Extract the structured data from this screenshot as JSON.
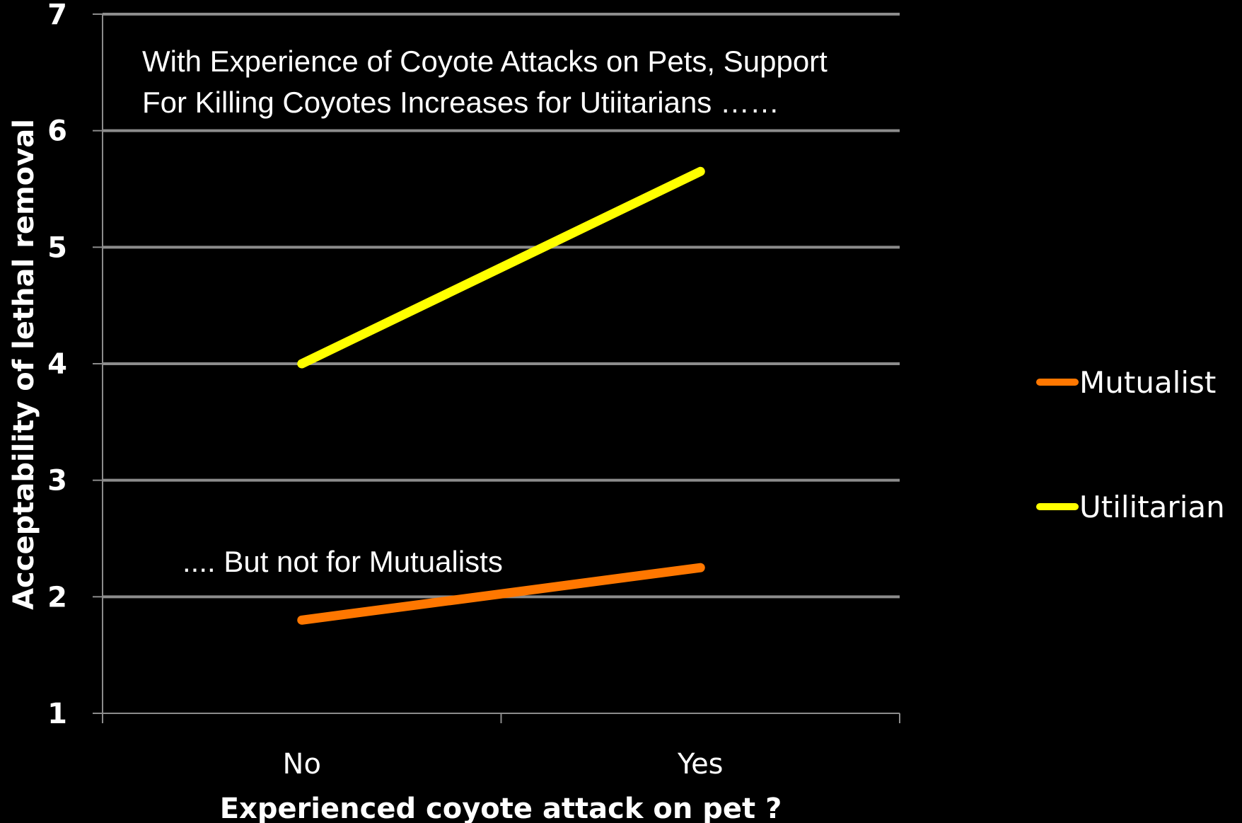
{
  "chart_data": {
    "type": "line",
    "categories": [
      "No",
      "Yes"
    ],
    "series": [
      {
        "name": "Mutualist",
        "values": [
          1.8,
          2.25
        ],
        "color": "#ff7700"
      },
      {
        "name": "Utilitarian",
        "values": [
          4.0,
          5.65
        ],
        "color": "#ffff00"
      }
    ],
    "xlabel": "Experienced coyote attack on pet ?",
    "ylabel": "Acceptability of lethal removal",
    "ylim": [
      1,
      7
    ],
    "yticks": [
      "1",
      "2",
      "3",
      "4",
      "5",
      "6",
      "7"
    ],
    "grid": true,
    "legend_position": "right",
    "annotations": {
      "top_line1": "With Experience of Coyote Attacks on Pets, Support",
      "top_line2": "For Killing Coyotes Increases for Utiitarians ……",
      "bottom": ".... But not for Mutualists"
    },
    "colors": {
      "background": "#000000",
      "gridline": "#8c8c8c",
      "axis": "#8c8c8c",
      "text": "#ffffff"
    }
  }
}
